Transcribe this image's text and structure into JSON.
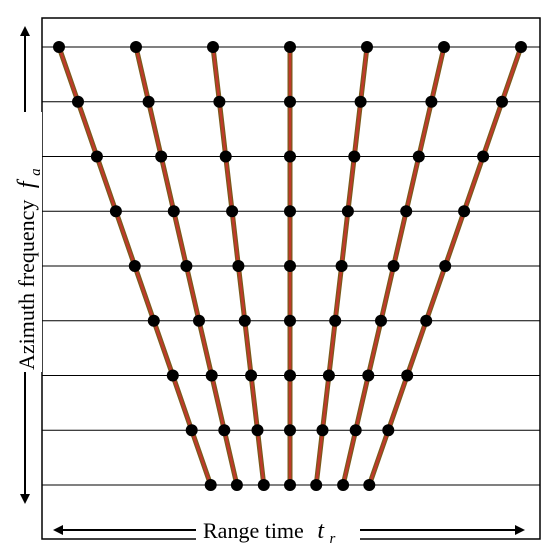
{
  "labels": {
    "y_axis_text": "Azimuth frequency",
    "y_axis_symbol": "f",
    "y_axis_subscript": "a",
    "x_axis_text": "Range time",
    "x_axis_symbol": "t",
    "x_axis_subscript": "r"
  },
  "colors": {
    "line": "#c0392b",
    "line_shadow": "#7a5a1a",
    "point": "#000000",
    "grid": "#000000",
    "frame": "#000000"
  },
  "icons": {
    "y_arrow": "double-headed-vertical-arrow",
    "x_arrow": "double-headed-horizontal-arrow",
    "point": "filled-circle-marker"
  },
  "diagram": {
    "grid_rows": 9,
    "trajectory_count": 7,
    "trajectories": [
      {
        "top": -3,
        "bottom": -1.03
      },
      {
        "top": -2,
        "bottom": -0.69
      },
      {
        "top": -1,
        "bottom": -0.34
      },
      {
        "top": 0,
        "bottom": 0
      },
      {
        "top": 1,
        "bottom": 0.34
      },
      {
        "top": 2,
        "bottom": 0.69
      },
      {
        "top": 3,
        "bottom": 1.03
      }
    ]
  }
}
